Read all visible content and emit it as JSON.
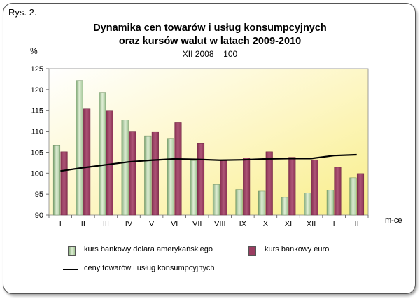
{
  "figure_label": "Rys. 2.",
  "chart_data": {
    "type": "bar",
    "title": "Dynamika cen towarów i usług konsumpcyjnych",
    "title_line2": "oraz kursów walut w latach 2009-2010",
    "subtitle": "XII 2008 = 100",
    "ylabel": "%",
    "xlabel": "m-ce",
    "ylim": [
      90,
      125
    ],
    "yticks": [
      90,
      95,
      100,
      105,
      110,
      115,
      120,
      125
    ],
    "grid": false,
    "legend_position": "bottom",
    "categories": [
      "I",
      "II",
      "III",
      "IV",
      "V",
      "VI",
      "VII",
      "VIII",
      "IX",
      "X",
      "XI",
      "XII",
      "I",
      "II"
    ],
    "series": [
      {
        "name": "kurs bankowy dolara amerykańskiego",
        "kind": "bar",
        "color": "#b9d7a9",
        "values": [
          106.7,
          122.2,
          119.2,
          112.7,
          108.9,
          108.3,
          103.0,
          97.3,
          96.1,
          95.7,
          94.2,
          95.3,
          95.9,
          98.9
        ]
      },
      {
        "name": "kurs bankowy euro",
        "kind": "bar",
        "color": "#9a3d61",
        "values": [
          105.1,
          115.5,
          115.0,
          110.0,
          109.9,
          112.2,
          107.2,
          103.0,
          103.6,
          105.1,
          103.8,
          103.2,
          101.4,
          99.9
        ]
      },
      {
        "name": "ceny towarów i usług konsumpcyjnych",
        "kind": "line",
        "color": "#000000",
        "values": [
          100.5,
          101.3,
          102.0,
          102.7,
          103.1,
          103.4,
          103.3,
          103.1,
          103.2,
          103.4,
          103.5,
          103.5,
          104.2,
          104.4
        ]
      }
    ],
    "plot_background": [
      "#ffffff",
      "#fff7a8"
    ]
  },
  "legend": {
    "usd": "kurs bankowy dolara amerykańskiego",
    "eur": "kurs bankowy euro",
    "cpi": "ceny towarów i usług konsumpcyjnych"
  }
}
